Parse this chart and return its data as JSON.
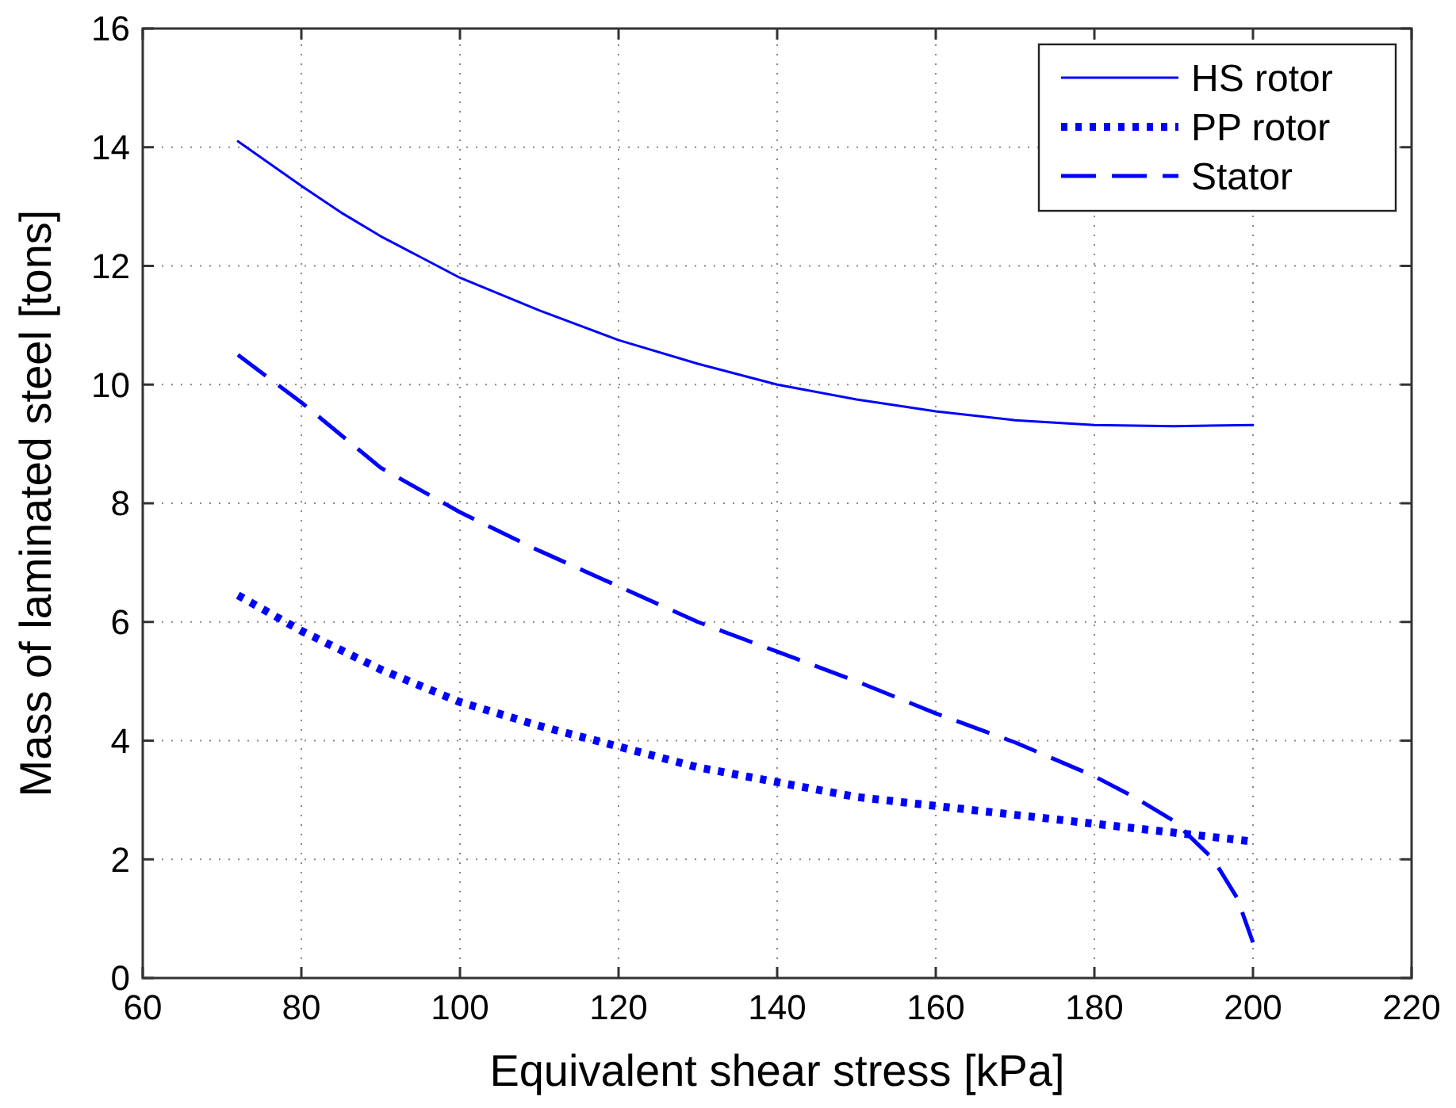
{
  "chart_data": {
    "type": "line",
    "xlabel": "Equivalent shear stress [kPa]",
    "ylabel": "Mass of laminated steel [tons]",
    "xlim": [
      60,
      220
    ],
    "xticks": [
      60,
      80,
      100,
      120,
      140,
      160,
      180,
      200,
      220
    ],
    "ylim": [
      0,
      16
    ],
    "yticks": [
      0,
      2,
      4,
      6,
      8,
      10,
      12,
      14,
      16
    ],
    "grid": true,
    "legend": "top right",
    "series": [
      {
        "name": "HS rotor",
        "color": "#0000ff",
        "line_style": "solid",
        "x": [
          72,
          80,
          85,
          90,
          95,
          100,
          110,
          120,
          130,
          140,
          150,
          160,
          170,
          180,
          190,
          200
        ],
        "values": [
          14.1,
          13.35,
          12.9,
          12.5,
          12.15,
          11.8,
          11.25,
          10.75,
          10.35,
          10.0,
          9.75,
          9.55,
          9.4,
          9.32,
          9.3,
          9.32
        ]
      },
      {
        "name": "PP rotor",
        "color": "#0000ff",
        "line_style": "dotted",
        "x": [
          72,
          80,
          90,
          100,
          110,
          120,
          130,
          140,
          150,
          160,
          170,
          180,
          190,
          200
        ],
        "values": [
          6.45,
          5.85,
          5.2,
          4.65,
          4.25,
          3.9,
          3.55,
          3.3,
          3.05,
          2.9,
          2.75,
          2.6,
          2.45,
          2.3
        ]
      },
      {
        "name": "Stator",
        "color": "#0000ff",
        "line_style": "dashed",
        "x": [
          72,
          80,
          90,
          100,
          110,
          120,
          130,
          140,
          150,
          160,
          170,
          180,
          185,
          190,
          195,
          198,
          200
        ],
        "values": [
          10.5,
          9.7,
          8.6,
          7.85,
          7.2,
          6.6,
          6.0,
          5.5,
          5.0,
          4.46,
          3.97,
          3.4,
          3.05,
          2.65,
          2.0,
          1.35,
          0.6
        ]
      }
    ]
  }
}
